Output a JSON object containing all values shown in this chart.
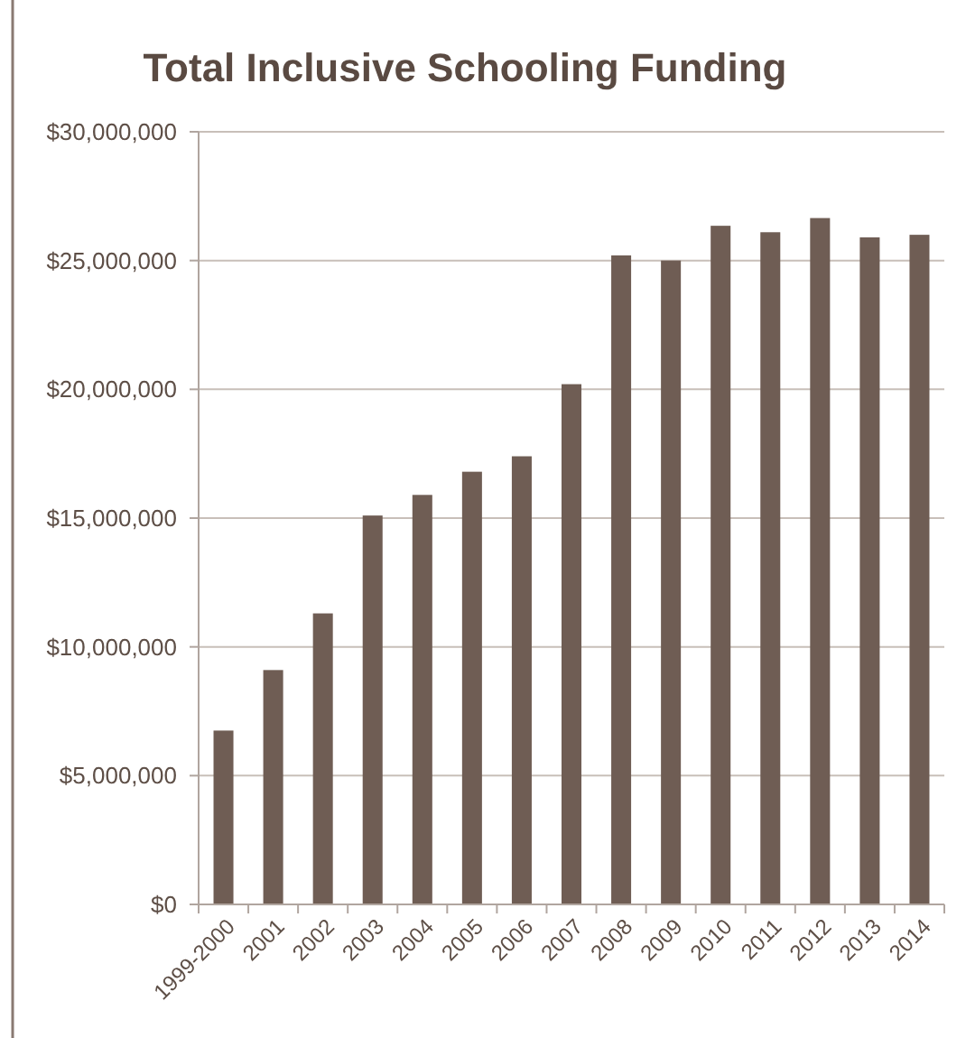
{
  "chart_data": {
    "type": "bar",
    "title": "Total Inclusive Schooling Funding",
    "categories": [
      "1999-2000",
      "2001",
      "2002",
      "2003",
      "2004",
      "2005",
      "2006",
      "2007",
      "2008",
      "2009",
      "2010",
      "2011",
      "2012",
      "2013",
      "2014"
    ],
    "values": [
      6750000,
      9100000,
      11300000,
      15100000,
      15900000,
      16800000,
      17400000,
      20200000,
      25200000,
      25000000,
      26350000,
      26100000,
      26650000,
      25900000,
      26000000
    ],
    "color": "#6f5d54",
    "ylim": [
      0,
      30000000
    ],
    "yticks": [
      {
        "value": 0,
        "label": "$0"
      },
      {
        "value": 5000000,
        "label": "$5,000,000"
      },
      {
        "value": 10000000,
        "label": "$10,000,000"
      },
      {
        "value": 15000000,
        "label": "$15,000,000"
      },
      {
        "value": 20000000,
        "label": "$20,000,000"
      },
      {
        "value": 25000000,
        "label": "$25,000,000"
      },
      {
        "value": 30000000,
        "label": "$30,000,000"
      }
    ],
    "grid": "y"
  }
}
